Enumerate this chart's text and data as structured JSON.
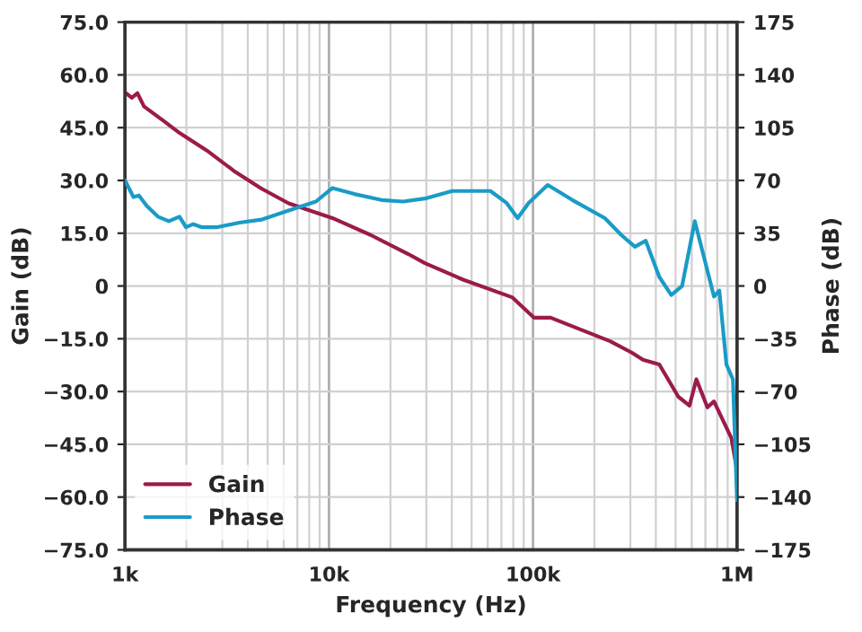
{
  "chart_data": {
    "type": "line",
    "xlabel": "Frequency (Hz)",
    "ylabel": "Gain (dB)",
    "y2label": "Phase (dB)",
    "log": "x",
    "grid": true,
    "legend": "bottom left",
    "line_style": "solid",
    "marker": "none",
    "xlim": [
      1000,
      1000000
    ],
    "xticks": [
      {
        "value": 1000,
        "label": "1k"
      },
      {
        "value": 10000,
        "label": "10k"
      },
      {
        "value": 100000,
        "label": "100k"
      },
      {
        "value": 1000000,
        "label": "1M"
      }
    ],
    "ylim": [
      -75,
      75
    ],
    "yticks": [
      {
        "value": 75,
        "label": "75.0"
      },
      {
        "value": 60,
        "label": "60.0"
      },
      {
        "value": 45,
        "label": "45.0"
      },
      {
        "value": 30,
        "label": "30.0"
      },
      {
        "value": 15,
        "label": "15.0"
      },
      {
        "value": 0,
        "label": "0"
      },
      {
        "value": -15,
        "label": "−15.0"
      },
      {
        "value": -30,
        "label": "−30.0"
      },
      {
        "value": -45,
        "label": "−45.0"
      },
      {
        "value": -60,
        "label": "−60.0"
      },
      {
        "value": -75,
        "label": "−75.0"
      }
    ],
    "y2lim": [
      -175,
      175
    ],
    "y2ticks": [
      175,
      140,
      105,
      70,
      35,
      0,
      {
        "value": -35,
        "label": "−35"
      },
      {
        "value": -70,
        "label": "−70"
      },
      {
        "value": -105,
        "label": "−105"
      },
      {
        "value": -140,
        "label": "−140"
      },
      {
        "value": -175,
        "label": "−175"
      }
    ],
    "series": [
      {
        "name": "Gain",
        "color": "#9b1b4a",
        "x": [
          1000,
          1080,
          1150,
          1240,
          1540,
          1850,
          2520,
          3420,
          4660,
          6340,
          10400,
          16000,
          24600,
          29500,
          45400,
          78900,
          101000,
          122000,
          239000,
          306000,
          346000,
          416000,
          516000,
          585000,
          632000,
          716000,
          771000,
          938000,
          1000000
        ],
        "values": [
          55,
          53.5,
          54.8,
          51,
          47,
          43.5,
          38.5,
          32.7,
          27.7,
          23.5,
          19.3,
          14.5,
          9,
          6.5,
          1.8,
          -3.2,
          -9,
          -9,
          -15.7,
          -19,
          -21,
          -22.3,
          -31.5,
          -34,
          -26.5,
          -34.5,
          -32.8,
          -43.2,
          -52.3
        ]
      },
      {
        "name": "Phase",
        "color": "#1a9bc8",
        "axis": "y2",
        "x": [
          1000,
          1100,
          1170,
          1280,
          1450,
          1640,
          1850,
          1990,
          2160,
          2370,
          2840,
          3640,
          4660,
          6340,
          8630,
          10400,
          13300,
          18100,
          23100,
          29500,
          40200,
          61800,
          74300,
          84100,
          95100,
          118000,
          156000,
          225000,
          270000,
          316000,
          357000,
          416000,
          476000,
          538000,
          621000,
          771000,
          819000,
          887000,
          955000,
          1000000
        ],
        "values": [
          70,
          59,
          60,
          53,
          46,
          43,
          46,
          39,
          41,
          39,
          39,
          42,
          44,
          50,
          56,
          65,
          61,
          57,
          56,
          58,
          63,
          63,
          55,
          45,
          55,
          67,
          57,
          45,
          34,
          26,
          30,
          6,
          -6,
          0,
          43,
          -7,
          -3,
          -52,
          -62,
          -142
        ]
      }
    ]
  }
}
